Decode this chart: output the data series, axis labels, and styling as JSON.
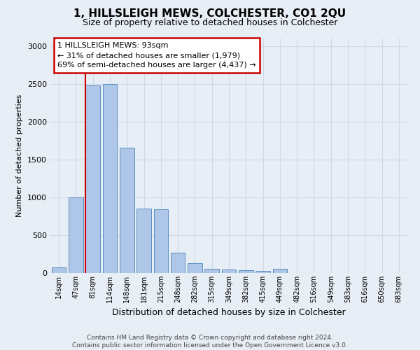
{
  "title": "1, HILLSLEIGH MEWS, COLCHESTER, CO1 2QU",
  "subtitle": "Size of property relative to detached houses in Colchester",
  "xlabel": "Distribution of detached houses by size in Colchester",
  "ylabel": "Number of detached properties",
  "categories": [
    "14sqm",
    "47sqm",
    "81sqm",
    "114sqm",
    "148sqm",
    "181sqm",
    "215sqm",
    "248sqm",
    "282sqm",
    "315sqm",
    "349sqm",
    "382sqm",
    "415sqm",
    "449sqm",
    "482sqm",
    "516sqm",
    "549sqm",
    "583sqm",
    "616sqm",
    "650sqm",
    "683sqm"
  ],
  "values": [
    75,
    1000,
    2480,
    2500,
    1660,
    850,
    840,
    265,
    130,
    60,
    50,
    40,
    28,
    55,
    3,
    0,
    0,
    0,
    0,
    0,
    0
  ],
  "bar_color": "#aec6e8",
  "bar_edge_color": "#5a8fc0",
  "highlight_line_bin": 2,
  "marker_label": "1 HILLSLEIGH MEWS: 93sqm",
  "annotation_line1": "← 31% of detached houses are smaller (1,979)",
  "annotation_line2": "69% of semi-detached houses are larger (4,437) →",
  "annotation_box_facecolor": "#ffffff",
  "annotation_box_edgecolor": "#cc0000",
  "grid_color": "#d0d8e8",
  "bg_color": "#e8eef5",
  "plot_bg_color": "#e8eef5",
  "ylim": [
    0,
    3100
  ],
  "yticks": [
    0,
    500,
    1000,
    1500,
    2000,
    2500,
    3000
  ],
  "footer_line1": "Contains HM Land Registry data © Crown copyright and database right 2024.",
  "footer_line2": "Contains public sector information licensed under the Open Government Licence v3.0.",
  "title_fontsize": 11,
  "subtitle_fontsize": 9,
  "ylabel_fontsize": 8,
  "xlabel_fontsize": 9,
  "tick_fontsize": 7,
  "footer_fontsize": 6.5,
  "ann_fontsize": 8
}
